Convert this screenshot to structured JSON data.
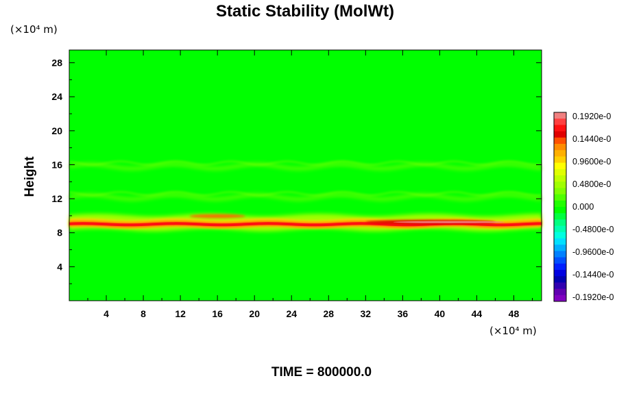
{
  "chart_data": {
    "type": "heatmap",
    "title": "Static Stability (MolWt)",
    "ylabel": "Height",
    "xlabel": "",
    "x_units": "(×10⁴ m)",
    "y_units": "(×10⁴ m)",
    "xlim": [
      0,
      51
    ],
    "ylim": [
      0,
      29.5
    ],
    "x_ticks": [
      4,
      8,
      12,
      16,
      20,
      24,
      28,
      32,
      36,
      40,
      44,
      48
    ],
    "y_ticks": [
      4,
      8,
      12,
      16,
      20,
      24,
      28
    ],
    "x_tick_labels": [
      "4",
      "8",
      "12",
      "16",
      "20",
      "24",
      "28",
      "32",
      "36",
      "40",
      "44",
      "48"
    ],
    "y_tick_labels": [
      "4",
      "8",
      "12",
      "16",
      "20",
      "24",
      "28"
    ],
    "colorbar": {
      "labels": [
        "0.1920e-0",
        "0.1440e-0",
        "0.9600e-0",
        "0.4800e-0",
        "0.000",
        "-0.4800e-0",
        "-0.9600e-0",
        "-0.1440e-0",
        "-0.1920e-0"
      ],
      "colors": [
        "#f08080",
        "#ff4040",
        "#ff1010",
        "#e00000",
        "#ff5000",
        "#ff8c00",
        "#ffb000",
        "#ffd000",
        "#ffff00",
        "#e0ff00",
        "#c0ff00",
        "#a0ff00",
        "#80ff00",
        "#50ff00",
        "#20ff00",
        "#00ff00",
        "#00ff40",
        "#00ff80",
        "#00ffb0",
        "#00ffe0",
        "#00e0ff",
        "#00b0ff",
        "#0080ff",
        "#0050ff",
        "#0020ff",
        "#0000e0",
        "#0000b0",
        "#3000b0",
        "#6000b0",
        "#8000c0"
      ]
    },
    "background_value_color": "#00ff00",
    "features": [
      {
        "name": "main-stable-layer",
        "height": 9.0,
        "x_range": [
          0,
          51
        ],
        "peak_x_range": [
          32,
          46
        ],
        "level": "max"
      },
      {
        "name": "upper-layer",
        "height": 15.8,
        "x_range": [
          0,
          51
        ],
        "level": "weak-positive"
      },
      {
        "name": "mid-layer",
        "height": 12.2,
        "x_range": [
          0,
          51
        ],
        "level": "weak-positive"
      }
    ],
    "grid": false
  },
  "time_label": "TIME = 800000.0"
}
